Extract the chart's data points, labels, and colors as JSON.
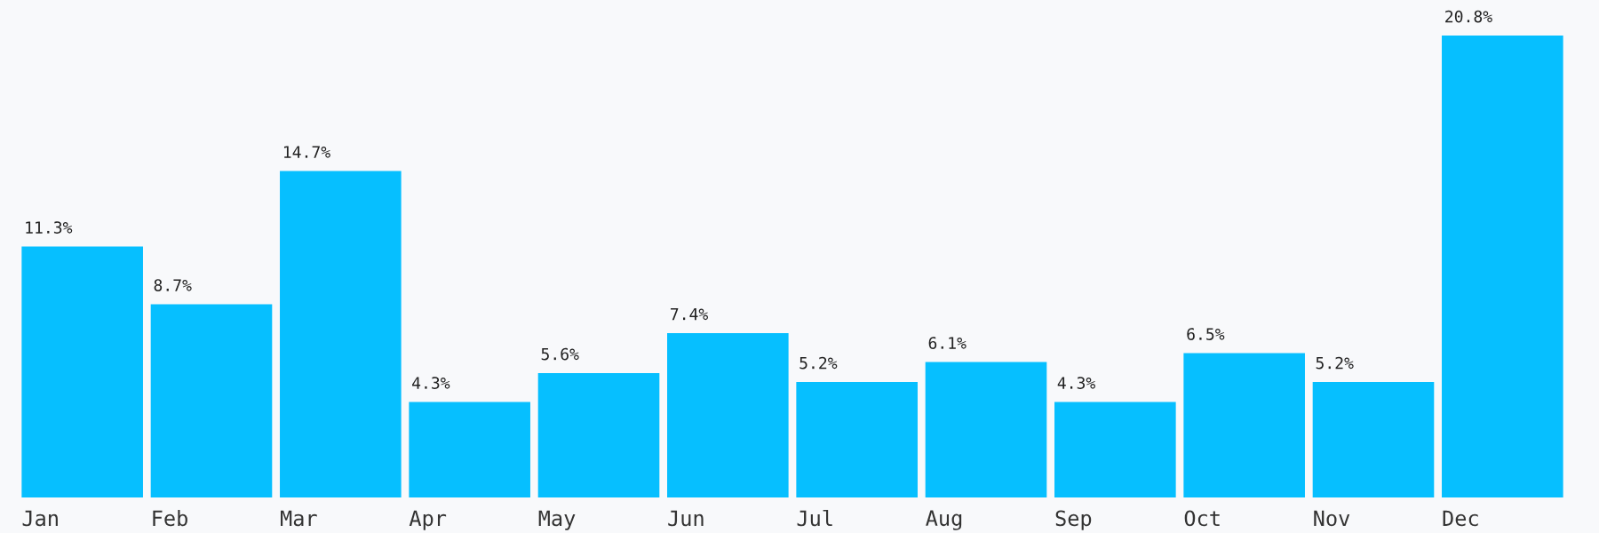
{
  "chart_data": {
    "type": "bar",
    "categories": [
      "Jan",
      "Feb",
      "Mar",
      "Apr",
      "May",
      "Jun",
      "Jul",
      "Aug",
      "Sep",
      "Oct",
      "Nov",
      "Dec"
    ],
    "values": [
      11.3,
      8.7,
      14.7,
      4.3,
      5.6,
      7.4,
      5.2,
      6.1,
      4.3,
      6.5,
      5.2,
      20.8
    ],
    "value_labels": [
      "11.3%",
      "8.7%",
      "14.7%",
      "4.3%",
      "5.6%",
      "7.4%",
      "5.2%",
      "6.1%",
      "4.3%",
      "6.5%",
      "5.2%",
      "20.8%"
    ],
    "color": "#06bfff",
    "grid": false,
    "legend": false
  }
}
